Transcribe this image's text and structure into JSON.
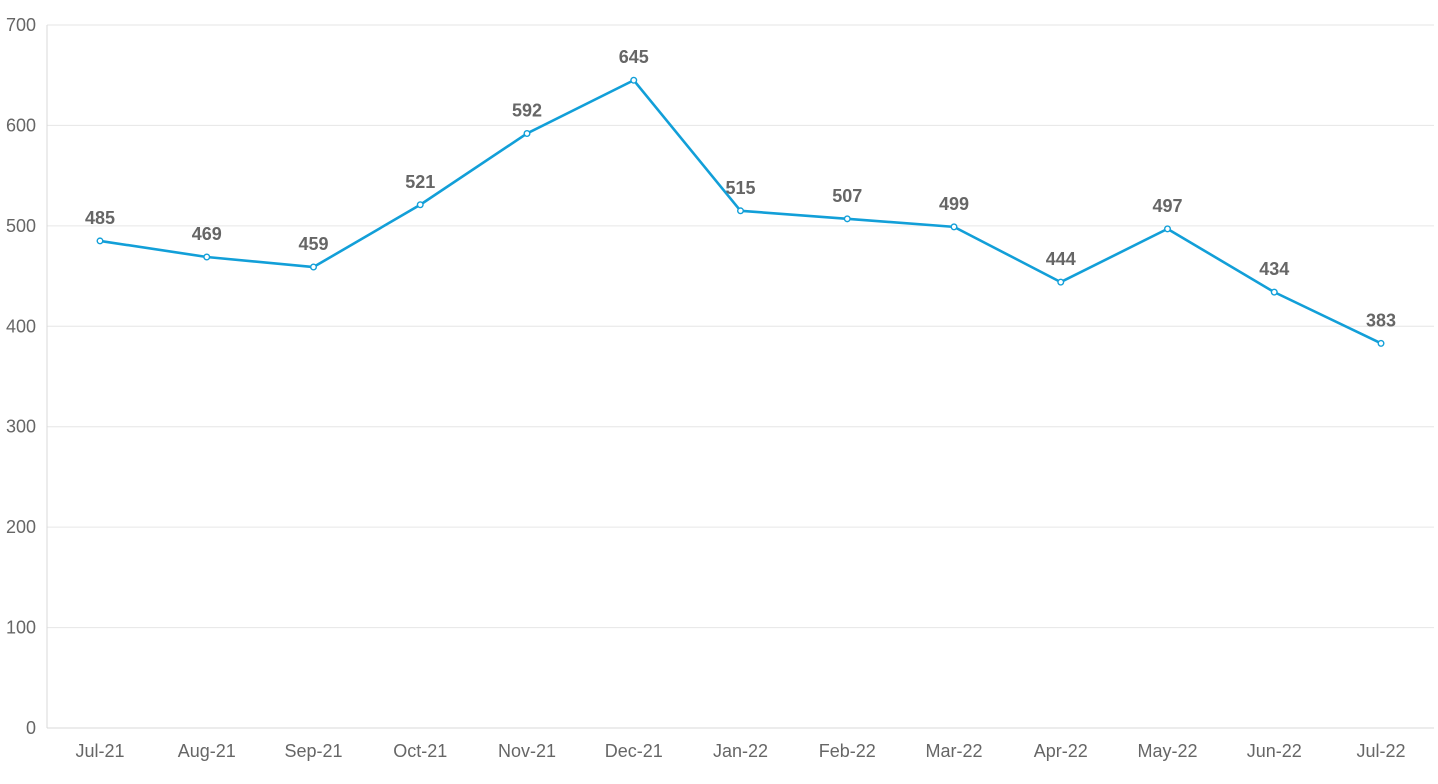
{
  "chart_data": {
    "type": "line",
    "title": "",
    "xlabel": "",
    "ylabel": "",
    "categories": [
      "Jul-21",
      "Aug-21",
      "Sep-21",
      "Oct-21",
      "Nov-21",
      "Dec-21",
      "Jan-22",
      "Feb-22",
      "Mar-22",
      "Apr-22",
      "May-22",
      "Jun-22",
      "Jul-22"
    ],
    "series": [
      {
        "values": [
          485,
          469,
          459,
          521,
          592,
          645,
          515,
          507,
          499,
          444,
          497,
          434,
          383
        ],
        "color": "#129fd8"
      }
    ],
    "ylim": [
      0,
      700
    ],
    "yticks": [
      0,
      100,
      200,
      300,
      400,
      500,
      600,
      700
    ],
    "grid": true,
    "legend": "none",
    "data_labels": true
  }
}
